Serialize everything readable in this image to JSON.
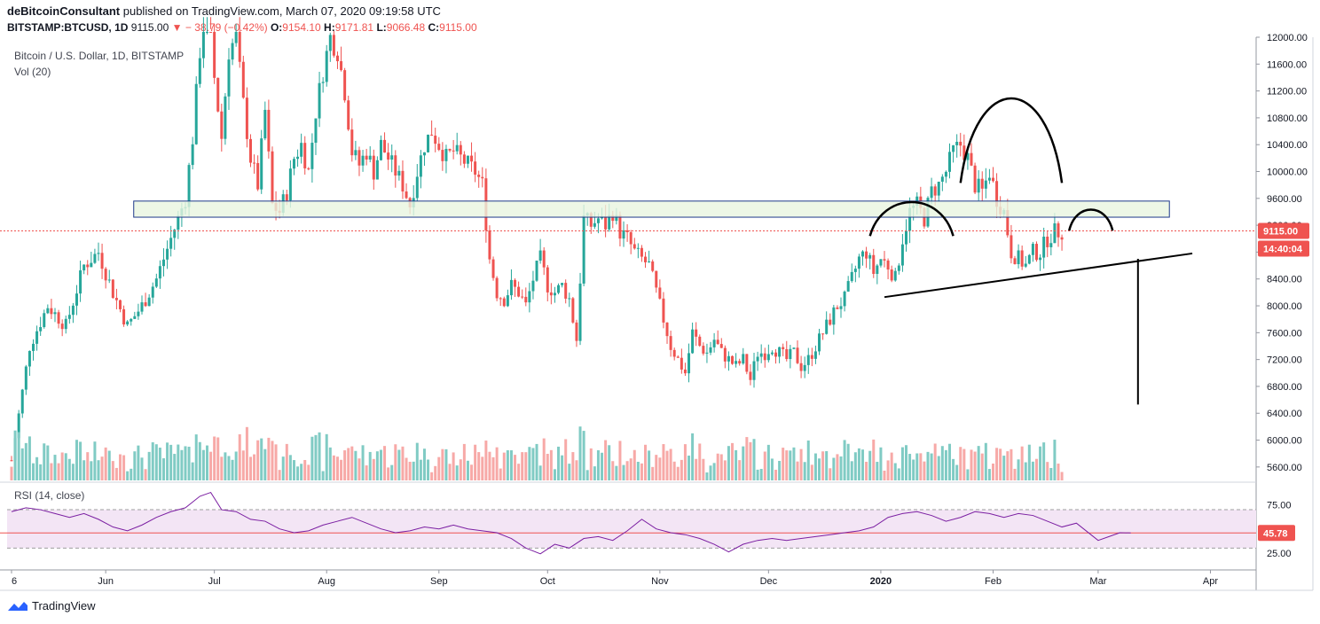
{
  "header": {
    "author": "deBitcoinConsultant",
    "published_text": "published on TradingView.com, March 07, 2020 09:19:58 UTC",
    "symbol": "BITSTAMP:BTCUSD, 1D",
    "last": "9115.00",
    "change": "− 38.79 (−0.42%)",
    "change_arrow": "▼",
    "o_label": "O:",
    "o_value": "9154.10",
    "h_label": "H:",
    "h_value": "9171.81",
    "l_label": "L:",
    "l_value": "9066.48",
    "c_label": "C:",
    "c_value": "9115.00"
  },
  "legend": {
    "title": "Bitcoin / U.S. Dollar, 1D, BITSTAMP",
    "volume": "Vol (20)",
    "rsi": "RSI (14, close)"
  },
  "footer": {
    "brand": "TradingView"
  },
  "colors": {
    "up": "#26a69a",
    "down": "#ef5350",
    "vol_up": "#80cbc4",
    "vol_down": "#f7a9a7",
    "rsi_line": "#7b1fa2",
    "rsi_band": "#f3e5f5",
    "box_fill": "#e8f5e0",
    "box_stroke": "#1e3a8a",
    "price_line": "#ef5350",
    "drawing": "#000000"
  },
  "chart_data": {
    "type": "candlestick",
    "title": "Bitcoin / U.S. Dollar, 1D, BITSTAMP",
    "price_axis": {
      "ylim": [
        5400,
        12000
      ],
      "ticks": [
        "12000.00",
        "11600.00",
        "11200.00",
        "10800.00",
        "10400.00",
        "10000.00",
        "9600.00",
        "9200.00",
        "8800.00",
        "8400.00",
        "8000.00",
        "7600.00",
        "7200.00",
        "6800.00",
        "6400.00",
        "6000.00",
        "5600.00"
      ],
      "tick_values": [
        12000,
        11600,
        11200,
        10800,
        10400,
        10000,
        9600,
        9200,
        8800,
        8400,
        8000,
        7600,
        7200,
        6800,
        6400,
        6000,
        5600
      ]
    },
    "time_axis": {
      "labels": [
        "6",
        "Jun",
        "Jul",
        "Aug",
        "Sep",
        "Oct",
        "Nov",
        "Dec",
        "2020",
        "Feb",
        "Mar",
        "Apr"
      ],
      "label_days": [
        0,
        26,
        56,
        87,
        118,
        148,
        179,
        209,
        240,
        271,
        300,
        331
      ],
      "bold_labels": [
        "2020"
      ]
    },
    "last_price": {
      "value": 9115,
      "label": "9115.00",
      "countdown": "14:40:04"
    },
    "rsi": {
      "ylim": [
        10,
        95
      ],
      "ticks": [
        "75.00",
        "25.00"
      ],
      "tick_values": [
        75,
        25
      ],
      "upper_band": 70,
      "lower_band": 30,
      "current": 45.78,
      "current_label": "45.78",
      "series": [
        [
          0,
          68
        ],
        [
          4,
          72
        ],
        [
          8,
          70
        ],
        [
          12,
          66
        ],
        [
          16,
          62
        ],
        [
          20,
          66
        ],
        [
          24,
          60
        ],
        [
          28,
          52
        ],
        [
          32,
          48
        ],
        [
          36,
          54
        ],
        [
          40,
          62
        ],
        [
          44,
          68
        ],
        [
          48,
          72
        ],
        [
          52,
          84
        ],
        [
          55,
          88
        ],
        [
          58,
          70
        ],
        [
          62,
          68
        ],
        [
          66,
          60
        ],
        [
          70,
          58
        ],
        [
          74,
          50
        ],
        [
          78,
          46
        ],
        [
          82,
          48
        ],
        [
          86,
          54
        ],
        [
          90,
          58
        ],
        [
          94,
          62
        ],
        [
          98,
          56
        ],
        [
          102,
          50
        ],
        [
          106,
          46
        ],
        [
          110,
          48
        ],
        [
          114,
          52
        ],
        [
          118,
          50
        ],
        [
          122,
          54
        ],
        [
          126,
          50
        ],
        [
          130,
          48
        ],
        [
          134,
          46
        ],
        [
          138,
          40
        ],
        [
          142,
          30
        ],
        [
          146,
          24
        ],
        [
          150,
          34
        ],
        [
          154,
          30
        ],
        [
          158,
          40
        ],
        [
          162,
          42
        ],
        [
          166,
          38
        ],
        [
          170,
          48
        ],
        [
          174,
          60
        ],
        [
          178,
          50
        ],
        [
          182,
          46
        ],
        [
          186,
          44
        ],
        [
          190,
          40
        ],
        [
          194,
          34
        ],
        [
          198,
          26
        ],
        [
          202,
          34
        ],
        [
          206,
          38
        ],
        [
          210,
          40
        ],
        [
          214,
          38
        ],
        [
          218,
          40
        ],
        [
          222,
          42
        ],
        [
          226,
          44
        ],
        [
          230,
          46
        ],
        [
          234,
          48
        ],
        [
          238,
          52
        ],
        [
          242,
          62
        ],
        [
          246,
          66
        ],
        [
          250,
          68
        ],
        [
          254,
          64
        ],
        [
          258,
          58
        ],
        [
          262,
          62
        ],
        [
          266,
          68
        ],
        [
          270,
          66
        ],
        [
          274,
          62
        ],
        [
          278,
          66
        ],
        [
          282,
          64
        ],
        [
          286,
          58
        ],
        [
          290,
          52
        ],
        [
          294,
          56
        ],
        [
          298,
          44
        ],
        [
          300,
          38
        ],
        [
          303,
          42
        ],
        [
          306,
          46
        ],
        [
          309,
          45.78
        ]
      ]
    },
    "annotations": {
      "support_zone": {
        "from_price": 9320,
        "to_price": 9560,
        "from_day": 33,
        "to_day": 316
      },
      "neckline": {
        "from_day": 241,
        "from_price": 8130,
        "to_day": 326,
        "to_price": 8780
      },
      "target_line": {
        "day": 311,
        "from_price": 8700,
        "to_price": 6530
      },
      "left_shoulder": {
        "from_day": 237,
        "to_day": 260,
        "base_price": 9040,
        "peak_price": 9460
      },
      "head": {
        "from_day": 262,
        "to_day": 290,
        "base_price": 9830,
        "peak_price": 10880
      },
      "right_shoulder": {
        "from_day": 292,
        "to_day": 304,
        "base_price": 9120,
        "peak_price": 9380
      }
    },
    "candles_note": "Daily OHLC derived from key price path (approx.)",
    "price_path": [
      [
        0,
        5700
      ],
      [
        5,
        7400
      ],
      [
        10,
        8000
      ],
      [
        15,
        7700
      ],
      [
        20,
        8600
      ],
      [
        24,
        8800
      ],
      [
        28,
        8200
      ],
      [
        32,
        7700
      ],
      [
        36,
        8000
      ],
      [
        40,
        8400
      ],
      [
        44,
        9000
      ],
      [
        48,
        9600
      ],
      [
        50,
        10500
      ],
      [
        52,
        11800
      ],
      [
        54,
        12600
      ],
      [
        56,
        11400
      ],
      [
        58,
        10500
      ],
      [
        60,
        11800
      ],
      [
        62,
        12000
      ],
      [
        64,
        11000
      ],
      [
        66,
        10200
      ],
      [
        68,
        9800
      ],
      [
        70,
        10900
      ],
      [
        72,
        9500
      ],
      [
        74,
        9400
      ],
      [
        76,
        9700
      ],
      [
        78,
        10200
      ],
      [
        80,
        10400
      ],
      [
        82,
        10000
      ],
      [
        84,
        10900
      ],
      [
        86,
        11500
      ],
      [
        88,
        12000
      ],
      [
        90,
        11800
      ],
      [
        92,
        11200
      ],
      [
        94,
        10300
      ],
      [
        96,
        10100
      ],
      [
        98,
        10300
      ],
      [
        100,
        10000
      ],
      [
        102,
        10400
      ],
      [
        104,
        10200
      ],
      [
        106,
        10000
      ],
      [
        108,
        9800
      ],
      [
        110,
        9500
      ],
      [
        112,
        10000
      ],
      [
        114,
        10400
      ],
      [
        116,
        10600
      ],
      [
        118,
        10400
      ],
      [
        120,
        10200
      ],
      [
        122,
        10300
      ],
      [
        124,
        10200
      ],
      [
        126,
        10100
      ],
      [
        128,
        10000
      ],
      [
        130,
        9800
      ],
      [
        132,
        8700
      ],
      [
        134,
        8200
      ],
      [
        136,
        8100
      ],
      [
        138,
        8300
      ],
      [
        140,
        8200
      ],
      [
        142,
        8000
      ],
      [
        144,
        8400
      ],
      [
        146,
        8700
      ],
      [
        148,
        8300
      ],
      [
        150,
        8200
      ],
      [
        152,
        8300
      ],
      [
        154,
        8100
      ],
      [
        156,
        7500
      ],
      [
        158,
        9300
      ],
      [
        160,
        9200
      ],
      [
        162,
        9300
      ],
      [
        164,
        9200
      ],
      [
        166,
        9400
      ],
      [
        168,
        9100
      ],
      [
        170,
        9000
      ],
      [
        172,
        8800
      ],
      [
        174,
        8700
      ],
      [
        176,
        8600
      ],
      [
        178,
        8200
      ],
      [
        180,
        7800
      ],
      [
        182,
        7400
      ],
      [
        184,
        7200
      ],
      [
        186,
        7000
      ],
      [
        188,
        7600
      ],
      [
        190,
        7400
      ],
      [
        192,
        7300
      ],
      [
        194,
        7500
      ],
      [
        196,
        7300
      ],
      [
        198,
        7200
      ],
      [
        200,
        7100
      ],
      [
        202,
        7200
      ],
      [
        204,
        6900
      ],
      [
        206,
        7300
      ],
      [
        208,
        7300
      ],
      [
        210,
        7400
      ],
      [
        212,
        7300
      ],
      [
        214,
        7200
      ],
      [
        216,
        7300
      ],
      [
        218,
        7100
      ],
      [
        220,
        7200
      ],
      [
        222,
        7400
      ],
      [
        224,
        7600
      ],
      [
        226,
        7800
      ],
      [
        228,
        8000
      ],
      [
        230,
        8100
      ],
      [
        232,
        8400
      ],
      [
        234,
        8700
      ],
      [
        236,
        8800
      ],
      [
        238,
        8500
      ],
      [
        240,
        8700
      ],
      [
        242,
        8600
      ],
      [
        244,
        8400
      ],
      [
        246,
        9000
      ],
      [
        248,
        9400
      ],
      [
        250,
        9500
      ],
      [
        252,
        9300
      ],
      [
        254,
        9700
      ],
      [
        256,
        9800
      ],
      [
        258,
        10000
      ],
      [
        260,
        10300
      ],
      [
        262,
        10400
      ],
      [
        264,
        10200
      ],
      [
        266,
        9800
      ],
      [
        268,
        9700
      ],
      [
        270,
        10000
      ],
      [
        272,
        9600
      ],
      [
        274,
        9400
      ],
      [
        276,
        8800
      ],
      [
        278,
        8700
      ],
      [
        280,
        8600
      ],
      [
        282,
        8800
      ],
      [
        284,
        8800
      ],
      [
        286,
        9000
      ],
      [
        288,
        9100
      ],
      [
        290,
        9115
      ]
    ]
  }
}
